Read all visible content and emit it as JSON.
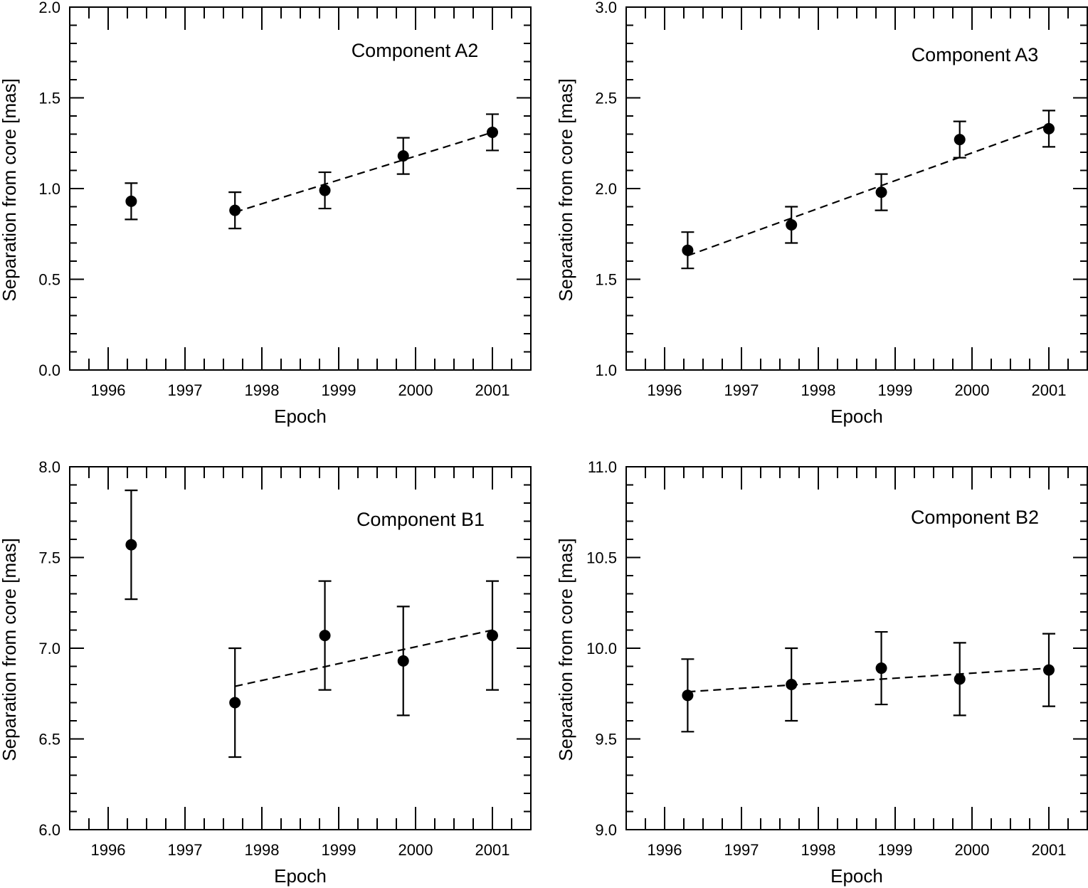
{
  "chart_data": [
    {
      "type": "scatter",
      "title": "Component A2",
      "xlabel": "Epoch",
      "ylabel": "Separation from core [mas]",
      "xlim": [
        1995.5,
        2001.5
      ],
      "ylim": [
        0.0,
        2.0
      ],
      "xticks": [
        "1996",
        "1997",
        "1998",
        "1999",
        "2000",
        "2001"
      ],
      "yticks": [
        "0.0",
        "0.5",
        "1.0",
        "1.5",
        "2.0"
      ],
      "points": [
        {
          "x": 1996.3,
          "y": 0.93,
          "err": 0.1
        },
        {
          "x": 1997.65,
          "y": 0.88,
          "err": 0.1
        },
        {
          "x": 1998.82,
          "y": 0.99,
          "err": 0.1
        },
        {
          "x": 1999.84,
          "y": 1.18,
          "err": 0.1
        },
        {
          "x": 2001.0,
          "y": 1.31,
          "err": 0.1
        }
      ],
      "fit": {
        "x": [
          1997.65,
          2001.0
        ],
        "y": [
          0.87,
          1.31
        ]
      }
    },
    {
      "type": "scatter",
      "title": "Component A3",
      "xlabel": "Epoch",
      "ylabel": "Separation from core [mas]",
      "xlim": [
        1995.5,
        2001.5
      ],
      "ylim": [
        1.0,
        3.0
      ],
      "xticks": [
        "1996",
        "1997",
        "1998",
        "1999",
        "2000",
        "2001"
      ],
      "yticks": [
        "1.0",
        "1.5",
        "2.0",
        "2.5",
        "3.0"
      ],
      "points": [
        {
          "x": 1996.3,
          "y": 1.66,
          "err": 0.1
        },
        {
          "x": 1997.65,
          "y": 1.8,
          "err": 0.1
        },
        {
          "x": 1998.82,
          "y": 1.98,
          "err": 0.1
        },
        {
          "x": 1999.84,
          "y": 2.27,
          "err": 0.1
        },
        {
          "x": 2001.0,
          "y": 2.33,
          "err": 0.1
        }
      ],
      "fit": {
        "x": [
          1996.3,
          2001.0
        ],
        "y": [
          1.63,
          2.35
        ]
      }
    },
    {
      "type": "scatter",
      "title": "Component B1",
      "xlabel": "Epoch",
      "ylabel": "Separation from core [mas]",
      "xlim": [
        1995.5,
        2001.5
      ],
      "ylim": [
        6.0,
        8.0
      ],
      "xticks": [
        "1996",
        "1997",
        "1998",
        "1999",
        "2000",
        "2001"
      ],
      "yticks": [
        "6.0",
        "6.5",
        "7.0",
        "7.5",
        "8.0"
      ],
      "points": [
        {
          "x": 1996.3,
          "y": 7.57,
          "err": 0.3
        },
        {
          "x": 1997.65,
          "y": 6.7,
          "err": 0.3
        },
        {
          "x": 1998.82,
          "y": 7.07,
          "err": 0.3
        },
        {
          "x": 1999.84,
          "y": 6.93,
          "err": 0.3
        },
        {
          "x": 2001.0,
          "y": 7.07,
          "err": 0.3
        }
      ],
      "fit": {
        "x": [
          1997.65,
          2001.0
        ],
        "y": [
          6.79,
          7.1
        ]
      }
    },
    {
      "type": "scatter",
      "title": "Component B2",
      "xlabel": "Epoch",
      "ylabel": "Separation from core [mas]",
      "xlim": [
        1995.5,
        2001.5
      ],
      "ylim": [
        9.0,
        11.0
      ],
      "xticks": [
        "1996",
        "1997",
        "1998",
        "1999",
        "2000",
        "2001"
      ],
      "yticks": [
        "9.0",
        "9.5",
        "10.0",
        "10.5",
        "11.0"
      ],
      "points": [
        {
          "x": 1996.3,
          "y": 9.74,
          "err": 0.2
        },
        {
          "x": 1997.65,
          "y": 9.8,
          "err": 0.2
        },
        {
          "x": 1998.82,
          "y": 9.89,
          "err": 0.2
        },
        {
          "x": 1999.84,
          "y": 9.83,
          "err": 0.2
        },
        {
          "x": 2001.0,
          "y": 9.88,
          "err": 0.2
        }
      ],
      "fit": {
        "x": [
          1996.3,
          2001.0
        ],
        "y": [
          9.76,
          9.89
        ]
      }
    }
  ]
}
